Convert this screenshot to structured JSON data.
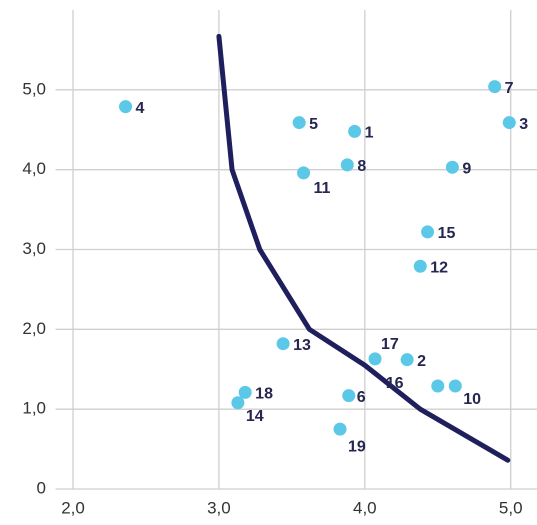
{
  "chart_data": {
    "type": "scatter",
    "xlim": [
      1.88,
      5.18
    ],
    "ylim": [
      0,
      6
    ],
    "xticks": [
      {
        "value": 2,
        "label": "2,0"
      },
      {
        "value": 3,
        "label": "3,0"
      },
      {
        "value": 4,
        "label": "4,0"
      },
      {
        "value": 5,
        "label": "5,0"
      }
    ],
    "yticks": [
      0,
      {
        "value": 1,
        "label": "1,0"
      },
      {
        "value": 2,
        "label": "2,0"
      },
      {
        "value": 3,
        "label": "3,0"
      },
      {
        "value": 4,
        "label": "4,0"
      },
      {
        "value": 5,
        "label": "5,0"
      }
    ],
    "grid": true,
    "points": {
      "color": "#5bc8e8",
      "labels": [
        "1",
        "2",
        "3",
        "4",
        "5",
        "6",
        "7",
        "8",
        "9",
        "10",
        "11",
        "12",
        "13",
        "14",
        "15",
        "16",
        "17",
        "18",
        "19"
      ],
      "x": [
        3.93,
        4.29,
        4.99,
        2.36,
        3.55,
        3.89,
        4.89,
        3.88,
        4.6,
        4.62,
        3.58,
        4.38,
        3.44,
        3.13,
        4.43,
        4.5,
        4.07,
        3.18,
        3.83
      ],
      "y": [
        4.48,
        1.62,
        4.59,
        4.79,
        4.59,
        1.17,
        5.04,
        4.06,
        4.03,
        1.29,
        3.96,
        2.79,
        1.82,
        1.08,
        3.22,
        1.29,
        1.63,
        1.21,
        0.75
      ]
    },
    "curve": {
      "color": "#1f1f5e",
      "x": [
        3.0,
        3.09,
        3.28,
        3.62,
        4.0,
        4.38,
        4.98
      ],
      "y": [
        5.67,
        4.0,
        3.0,
        2.0,
        1.55,
        1.0,
        0.36
      ]
    }
  }
}
